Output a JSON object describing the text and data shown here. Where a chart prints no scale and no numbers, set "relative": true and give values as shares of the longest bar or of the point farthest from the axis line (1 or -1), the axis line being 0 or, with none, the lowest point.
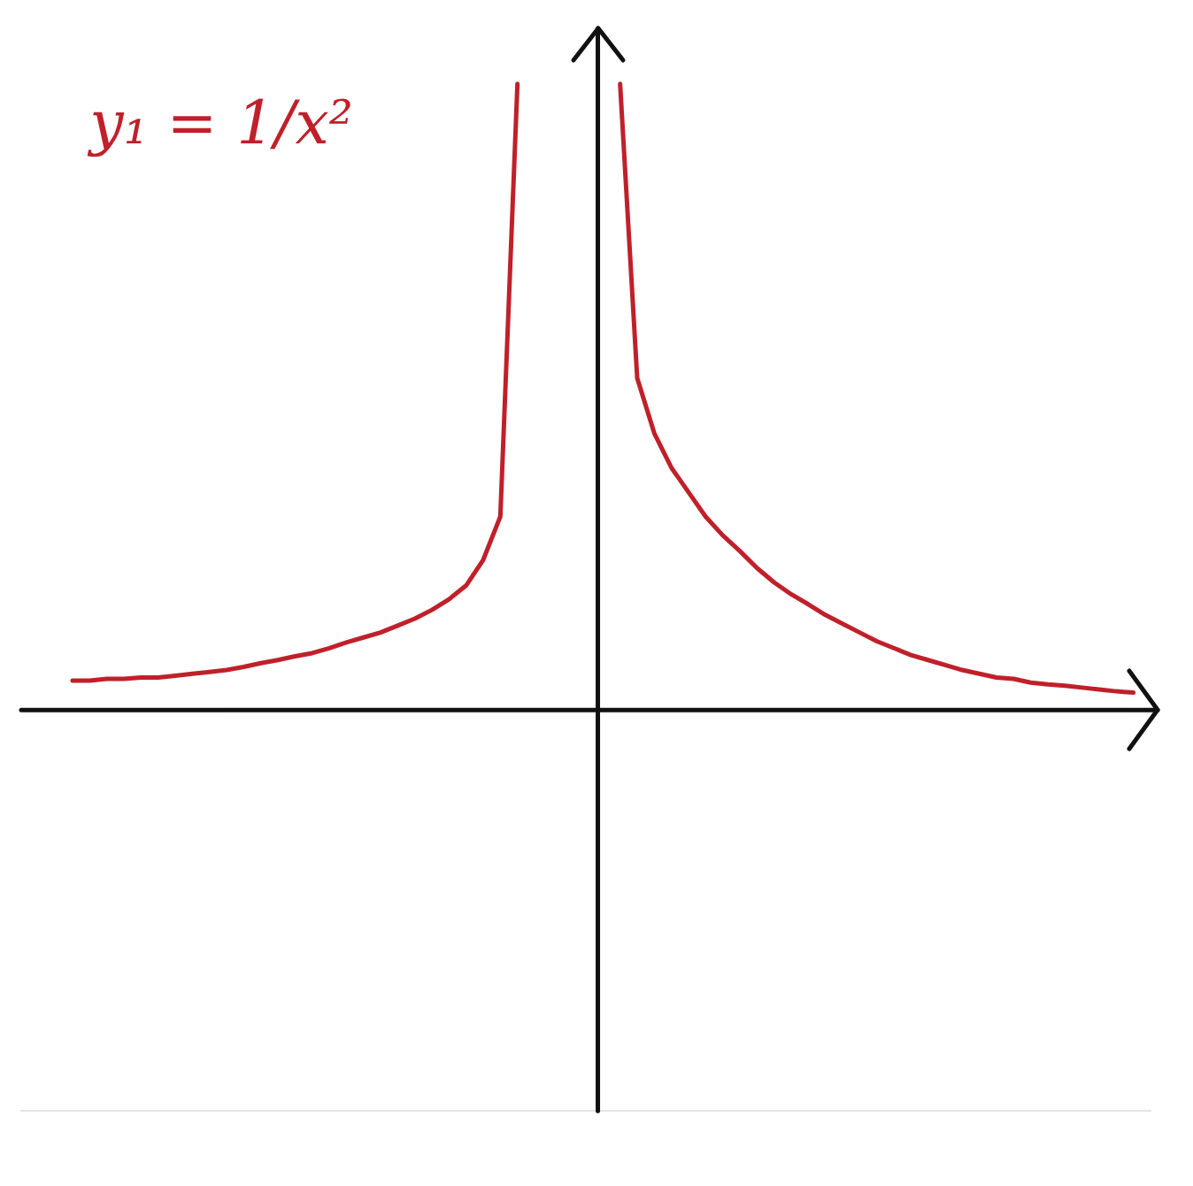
{
  "chart_data": {
    "type": "line",
    "relative": true,
    "legend": false,
    "marker": "none",
    "line_style": "solid",
    "annotations": [
      "y₁ = 1/x²"
    ],
    "categories": [
      null,
      null,
      null,
      null,
      null,
      null,
      null,
      null,
      null,
      null,
      null,
      null,
      null,
      null,
      null,
      null,
      null,
      null,
      null,
      null,
      null,
      null,
      null,
      null,
      null,
      null,
      null,
      null,
      null,
      null,
      null,
      null,
      null,
      null,
      null,
      null,
      null,
      null,
      null,
      null,
      null,
      null,
      null,
      null,
      null,
      null,
      null,
      null,
      null,
      null,
      null,
      null,
      null,
      null,
      null,
      null,
      null,
      null,
      null,
      null,
      null,
      null,
      null,
      null,
      null,
      null,
      null
    ],
    "series": [
      {
        "color": "#c0202a",
        "values": [
          null,
          null,
          null,
          0.047,
          0.047,
          0.05,
          0.05,
          0.052,
          0.052,
          0.055,
          0.058,
          0.061,
          0.064,
          0.069,
          0.075,
          0.08,
          0.086,
          0.091,
          0.099,
          0.108,
          0.116,
          0.124,
          0.135,
          0.146,
          0.16,
          0.177,
          0.199,
          0.24,
          0.309,
          1,
          null,
          null,
          null,
          null,
          null,
          null,
          null,
          null,
          null,
          null,
          null,
          null,
          null,
          null,
          null,
          null,
          null,
          null,
          null,
          null,
          null,
          null,
          null,
          null,
          null,
          null,
          null,
          null,
          null,
          null,
          null,
          null,
          null,
          null,
          null,
          null,
          null
        ]
      },
      {
        "color": "#c0202a",
        "values": [
          null,
          null,
          null,
          null,
          null,
          null,
          null,
          null,
          null,
          null,
          null,
          null,
          null,
          null,
          null,
          null,
          null,
          null,
          null,
          null,
          null,
          null,
          null,
          null,
          null,
          null,
          null,
          null,
          null,
          null,
          null,
          null,
          null,
          null,
          null,
          1,
          0.53,
          0.442,
          0.387,
          0.348,
          0.309,
          0.279,
          0.254,
          0.227,
          0.204,
          0.185,
          0.169,
          0.152,
          0.138,
          0.124,
          0.11,
          0.099,
          0.088,
          0.08,
          0.072,
          0.064,
          0.058,
          0.052,
          0.05,
          0.044,
          0.041,
          0.039,
          0.036,
          0.033,
          0.03,
          0.028,
          null
        ]
      }
    ]
  }
}
